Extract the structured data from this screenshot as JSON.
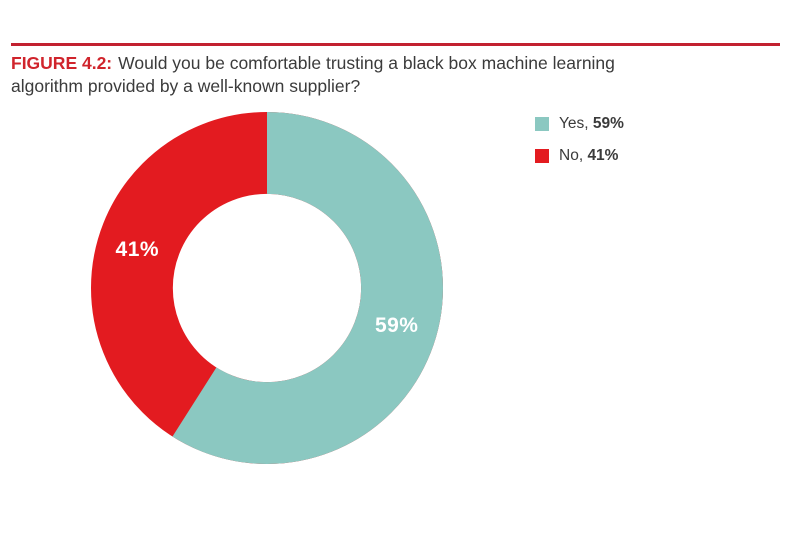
{
  "header": {
    "figure_label": "FIGURE 4.2:",
    "question_line1": "Would you be comfortable trusting a black box machine learning",
    "question_line2": "algorithm provided by a well-known supplier?"
  },
  "chart_data": {
    "type": "pie",
    "subtype": "donut",
    "title": "Would you be comfortable trusting a black box machine learning algorithm provided by a well-known supplier?",
    "categories": [
      "Yes",
      "No"
    ],
    "values": [
      59,
      41
    ],
    "unit": "%",
    "segments": [
      {
        "label": "Yes",
        "value": 59,
        "display": "59%",
        "color": "#8bc8c1"
      },
      {
        "label": "No",
        "value": 41,
        "display": "41%",
        "color": "#e31b20"
      }
    ],
    "start_angle_deg": 0,
    "direction": "clockwise",
    "inner_radius_ratio": 0.535,
    "legend_position": "top-right"
  },
  "legend": {
    "items": [
      {
        "label": "Yes,",
        "value": "59%",
        "color": "#8bc8c1"
      },
      {
        "label": "No,",
        "value": "41%",
        "color": "#e31b20"
      }
    ]
  },
  "colors": {
    "rule_red": "#c22130",
    "figure_label_red": "#d0242c",
    "title_text": "#3b3b3b",
    "slice_label_white": "#ffffff"
  }
}
